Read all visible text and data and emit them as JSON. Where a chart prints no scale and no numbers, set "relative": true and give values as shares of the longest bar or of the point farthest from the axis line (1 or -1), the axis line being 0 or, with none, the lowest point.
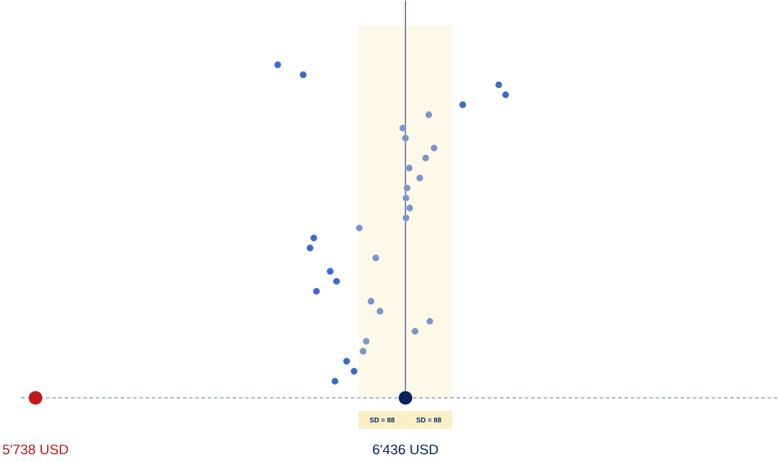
{
  "chart_data": {
    "type": "scatter",
    "relative": true,
    "marker": "circle",
    "xlim": [
      5711,
      7140
    ],
    "xticks": [
      {
        "value": 5738,
        "label": "5'738 USD"
      },
      {
        "value": 6436,
        "label": "6'436 USD"
      }
    ],
    "series": [
      {
        "x": [
          6195,
          6243,
          6612,
          6625,
          6544,
          6480,
          6431,
          6436,
          6490,
          6474,
          6443,
          6463,
          6439,
          6437,
          6444,
          6437,
          6349,
          6263,
          6256,
          6380,
          6294,
          6306,
          6268,
          6371,
          6388,
          6482,
          6454,
          6362,
          6356,
          6325,
          6339,
          6303
        ],
        "values": [
          1.0,
          0.97,
          0.94,
          0.91,
          0.88,
          0.85,
          0.81,
          0.78,
          0.75,
          0.72,
          0.69,
          0.66,
          0.63,
          0.6,
          0.57,
          0.54,
          0.51,
          0.48,
          0.45,
          0.42,
          0.38,
          0.35,
          0.32,
          0.29,
          0.26,
          0.23,
          0.2,
          0.17,
          0.14,
          0.11,
          0.08,
          0.05
        ],
        "colors": [
          "#3a6bc9",
          "#3a6bc9",
          "#3a6bc9",
          "#3a6bc9",
          "#3a6bc9",
          "#7a96c8",
          "#7a96c8",
          "#7a96c8",
          "#7a96c8",
          "#7a96c8",
          "#7a96c8",
          "#7a96c8",
          "#7a96c8",
          "#7a96c8",
          "#7a96c8",
          "#7a96c8",
          "#7a96c8",
          "#3a6bc9",
          "#3a6bc9",
          "#7a96c8",
          "#3a6bc9",
          "#3a6bc9",
          "#3a6bc9",
          "#7a96c8",
          "#7a96c8",
          "#7a96c8",
          "#7a96c8",
          "#7a96c8",
          "#7a96c8",
          "#3a6bc9",
          "#3a6bc9",
          "#3a6bc9"
        ]
      },
      {
        "x": [
          5738
        ],
        "values": [
          0
        ],
        "color": "#c0181b"
      },
      {
        "x": [
          6436
        ],
        "values": [
          0
        ],
        "color": "#0a2360"
      }
    ],
    "ref_lines": [
      {
        "axis": "y",
        "value": 0,
        "color": "#2f4a86",
        "line_style": "dashed"
      },
      {
        "axis": "x",
        "value": 6436,
        "color": "#4a5f94",
        "line_style": "solid"
      }
    ],
    "bands": [
      {
        "axis": "x",
        "from": 6348,
        "to": 6436,
        "label": "SD = 88",
        "color": "#fdf9e8"
      },
      {
        "axis": "x",
        "from": 6436,
        "to": 6524,
        "label": "SD = 88",
        "color": "#fdf9e8"
      }
    ]
  }
}
